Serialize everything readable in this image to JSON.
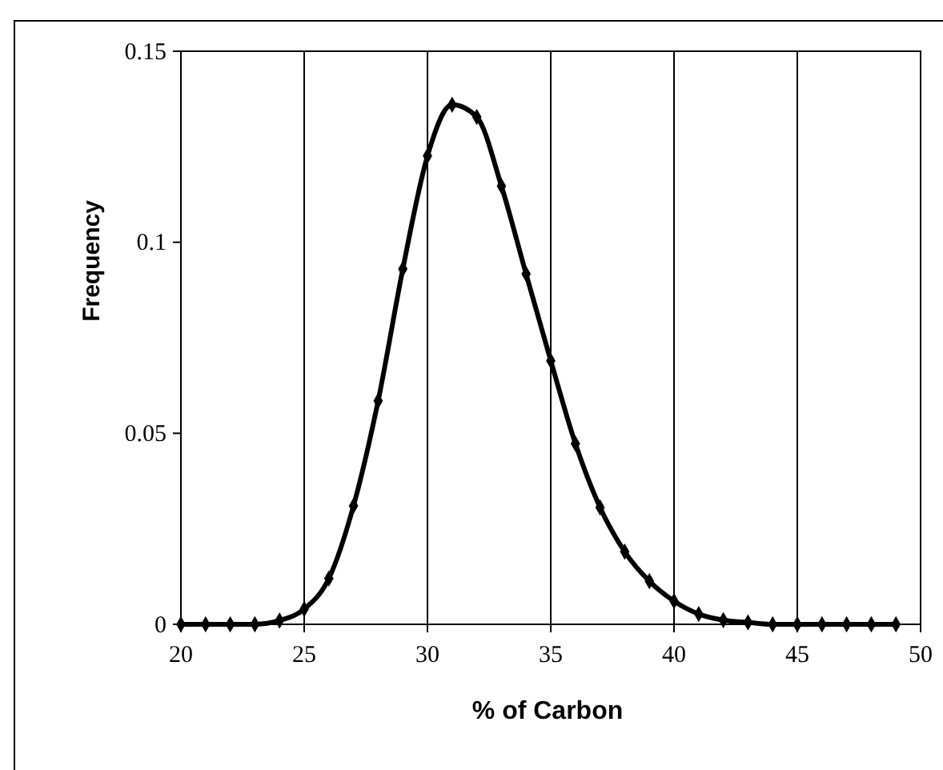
{
  "chart_data": {
    "type": "line",
    "xlabel": "% of Carbon",
    "ylabel": "Frequency",
    "x": [
      20,
      21,
      22,
      23,
      24,
      25,
      26,
      27,
      28,
      29,
      30,
      31,
      32,
      33,
      34,
      35,
      36,
      37,
      38,
      39,
      40,
      41,
      42,
      43,
      44,
      45,
      46,
      47,
      48,
      49
    ],
    "series": [
      {
        "color": "#000000",
        "values": [
          0,
          0,
          0,
          0,
          0.001,
          0.004,
          0.012,
          0.031,
          0.0585,
          0.093,
          0.1226,
          0.136,
          0.1328,
          0.1147,
          0.0917,
          0.069,
          0.0473,
          0.0306,
          0.019,
          0.0113,
          0.0061,
          0.0027,
          0.0011,
          0.0005,
          0,
          0,
          0,
          0,
          0,
          0
        ]
      }
    ],
    "xlim": [
      20,
      50
    ],
    "xticks": [
      20,
      25,
      30,
      35,
      40,
      45,
      50
    ],
    "ylim": [
      0,
      0.15
    ],
    "yticks": [
      0,
      0.05,
      0.1,
      0.15
    ],
    "grid": "x",
    "marker": "diamond",
    "line_style": "solid"
  }
}
